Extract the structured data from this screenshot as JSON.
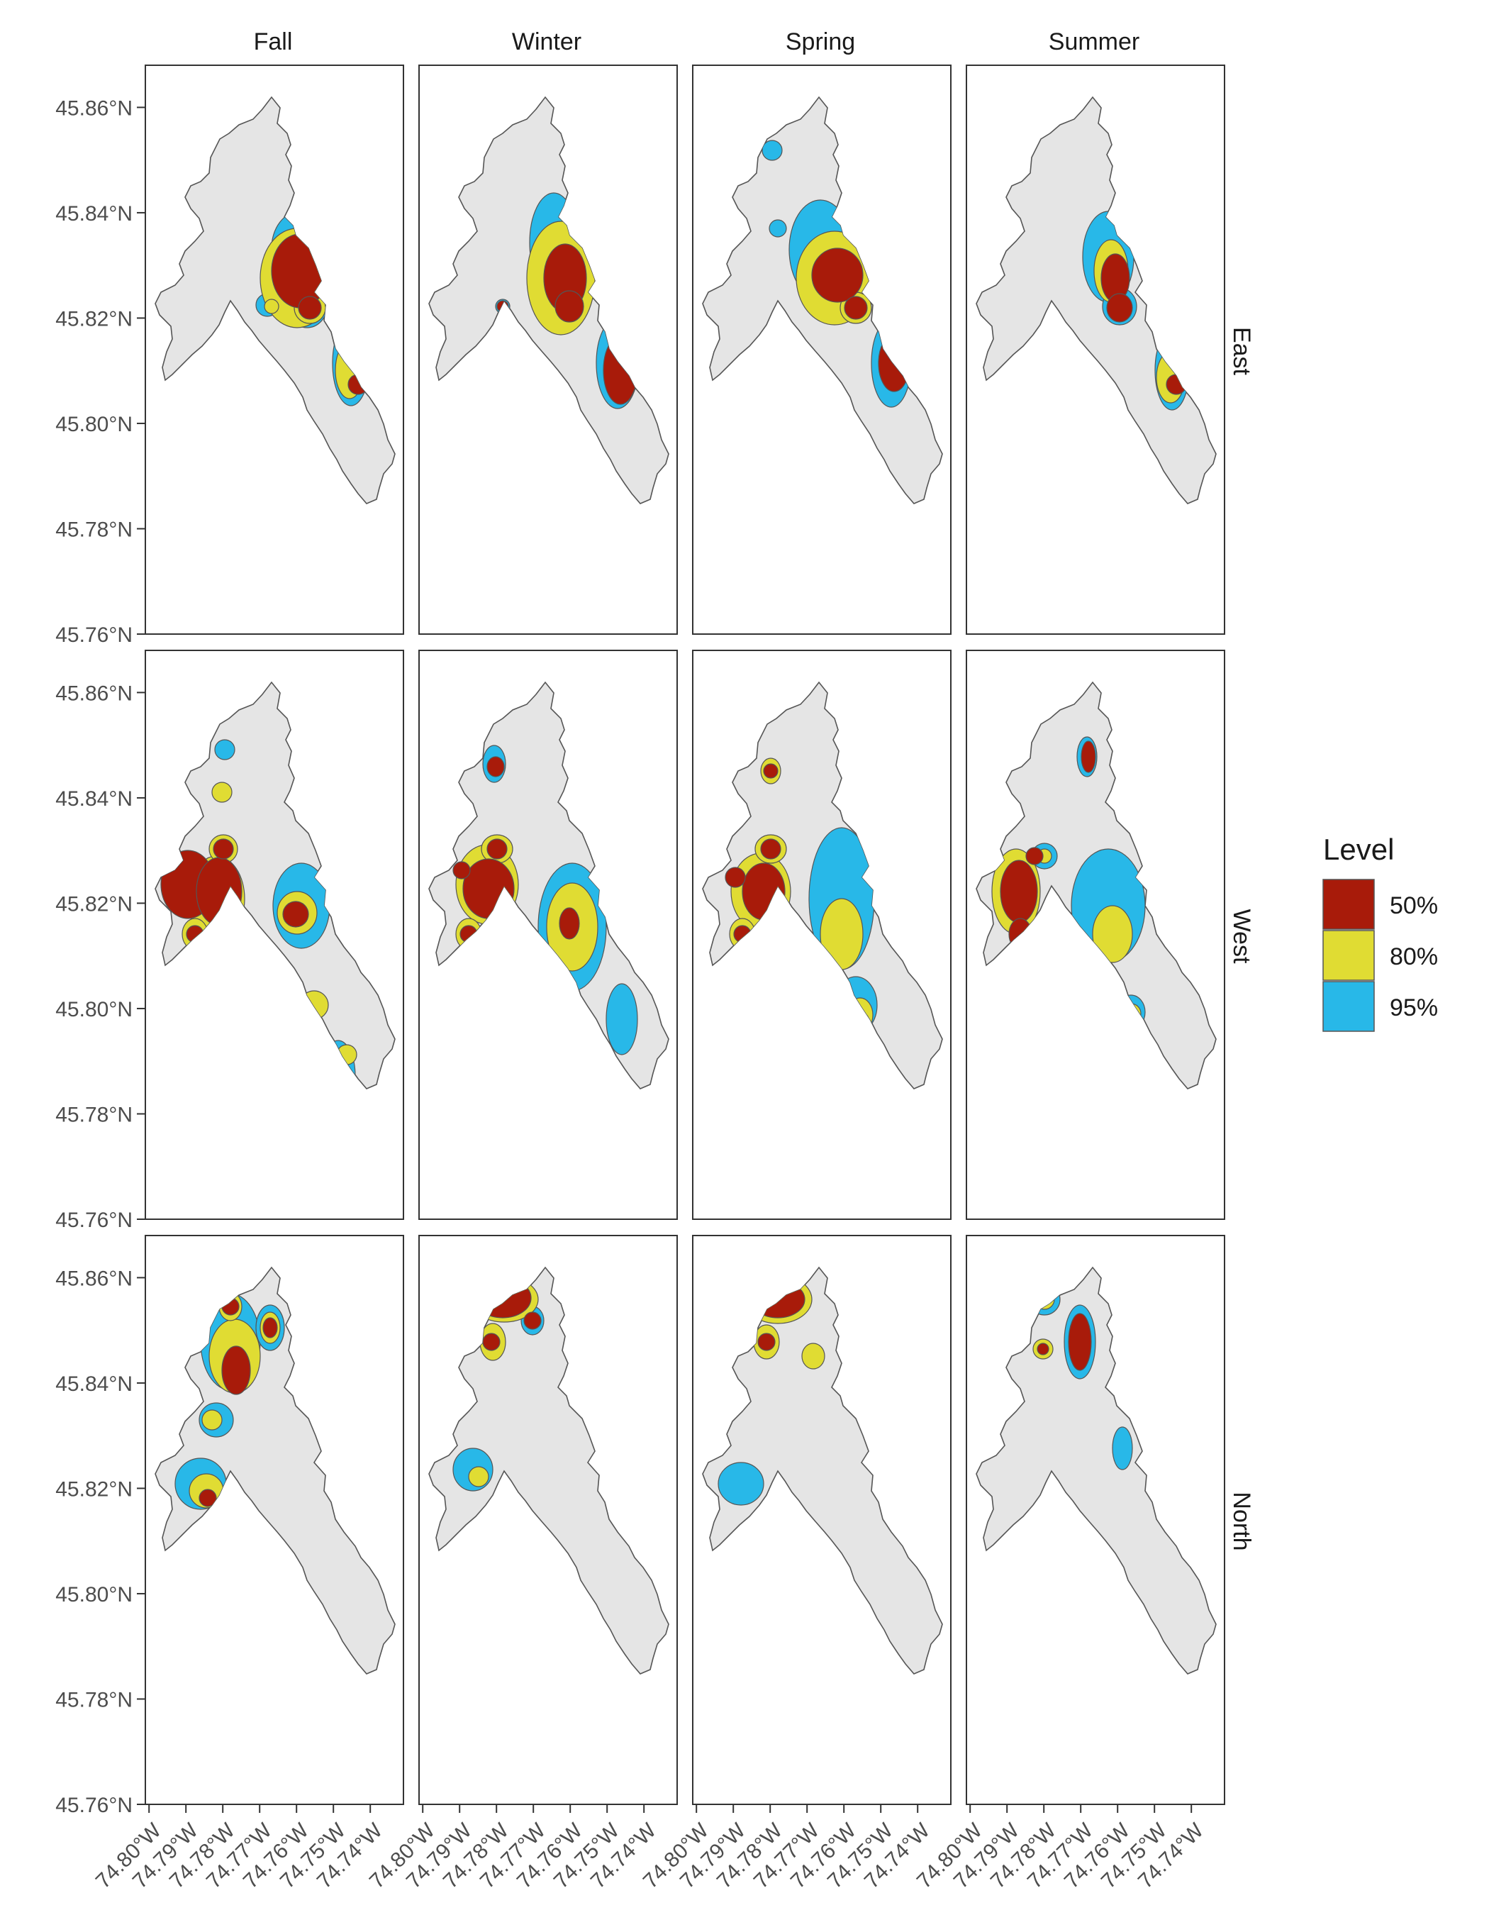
{
  "columns": [
    "Fall",
    "Winter",
    "Spring",
    "Summer"
  ],
  "rows": [
    "East",
    "West",
    "North"
  ],
  "axes": {
    "lat_ticks": [
      "45.86°N",
      "45.84°N",
      "45.82°N",
      "45.80°N",
      "45.78°N",
      "45.76°N"
    ],
    "lon_ticks": [
      "74.80°W",
      "74.79°W",
      "74.78°W",
      "74.77°W",
      "74.76°W",
      "74.75°W",
      "74.74°W"
    ],
    "lat_range": [
      45.76,
      45.868
    ],
    "lon_range": [
      -74.801,
      -74.731
    ]
  },
  "legend": {
    "title": "Level",
    "items": [
      {
        "label": "50%",
        "color": "#a81b0a"
      },
      {
        "label": "80%",
        "color": "#e0dc33"
      },
      {
        "label": "95%",
        "color": "#28b8e8"
      }
    ]
  },
  "colors": {
    "lake": "#e5e5e5",
    "lake_outline": "#555555",
    "level_50": "#a81b0a",
    "level_80": "#e0dc33",
    "level_95": "#28b8e8"
  }
}
